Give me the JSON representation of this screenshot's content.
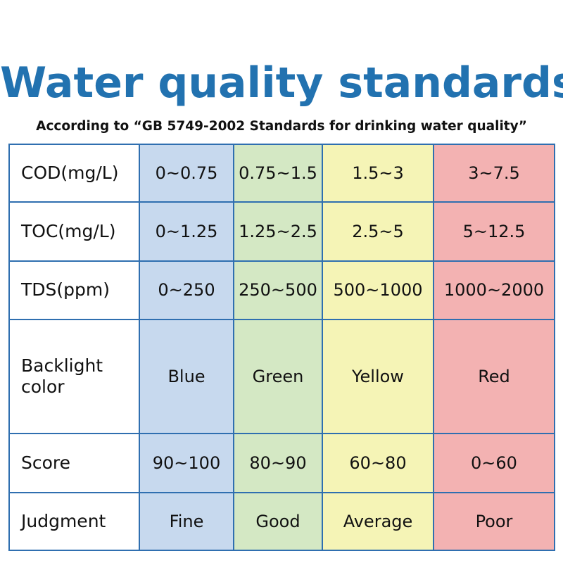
{
  "title": "Water quality standards",
  "subtitle": "According to “GB 5749-2002 Standards for drinking water quality”",
  "colors": {
    "title": "#2272b0",
    "border": "#2f6fb0",
    "blue_column": "#c7d9ee",
    "green_column": "#d4e8c4",
    "yellow_column": "#f5f4b6",
    "red_column": "#f3b2b2"
  },
  "rows": [
    {
      "label": "COD(mg/L)",
      "cells": [
        "0~0.75",
        "0.75~1.5",
        "1.5~3",
        "3~7.5"
      ]
    },
    {
      "label": "TOC(mg/L)",
      "cells": [
        "0~1.25",
        "1.25~2.5",
        "2.5~5",
        "5~12.5"
      ]
    },
    {
      "label": "TDS(ppm)",
      "cells": [
        "0~250",
        "250~500",
        "500~1000",
        "1000~2000"
      ]
    },
    {
      "label": "Backlight color",
      "cells": [
        "Blue",
        "Green",
        "Yellow",
        "Red"
      ]
    },
    {
      "label": "Score",
      "cells": [
        "90~100",
        "80~90",
        "60~80",
        "0~60"
      ]
    },
    {
      "label": "Judgment",
      "cells": [
        "Fine",
        "Good",
        "Average",
        "Poor"
      ]
    }
  ]
}
